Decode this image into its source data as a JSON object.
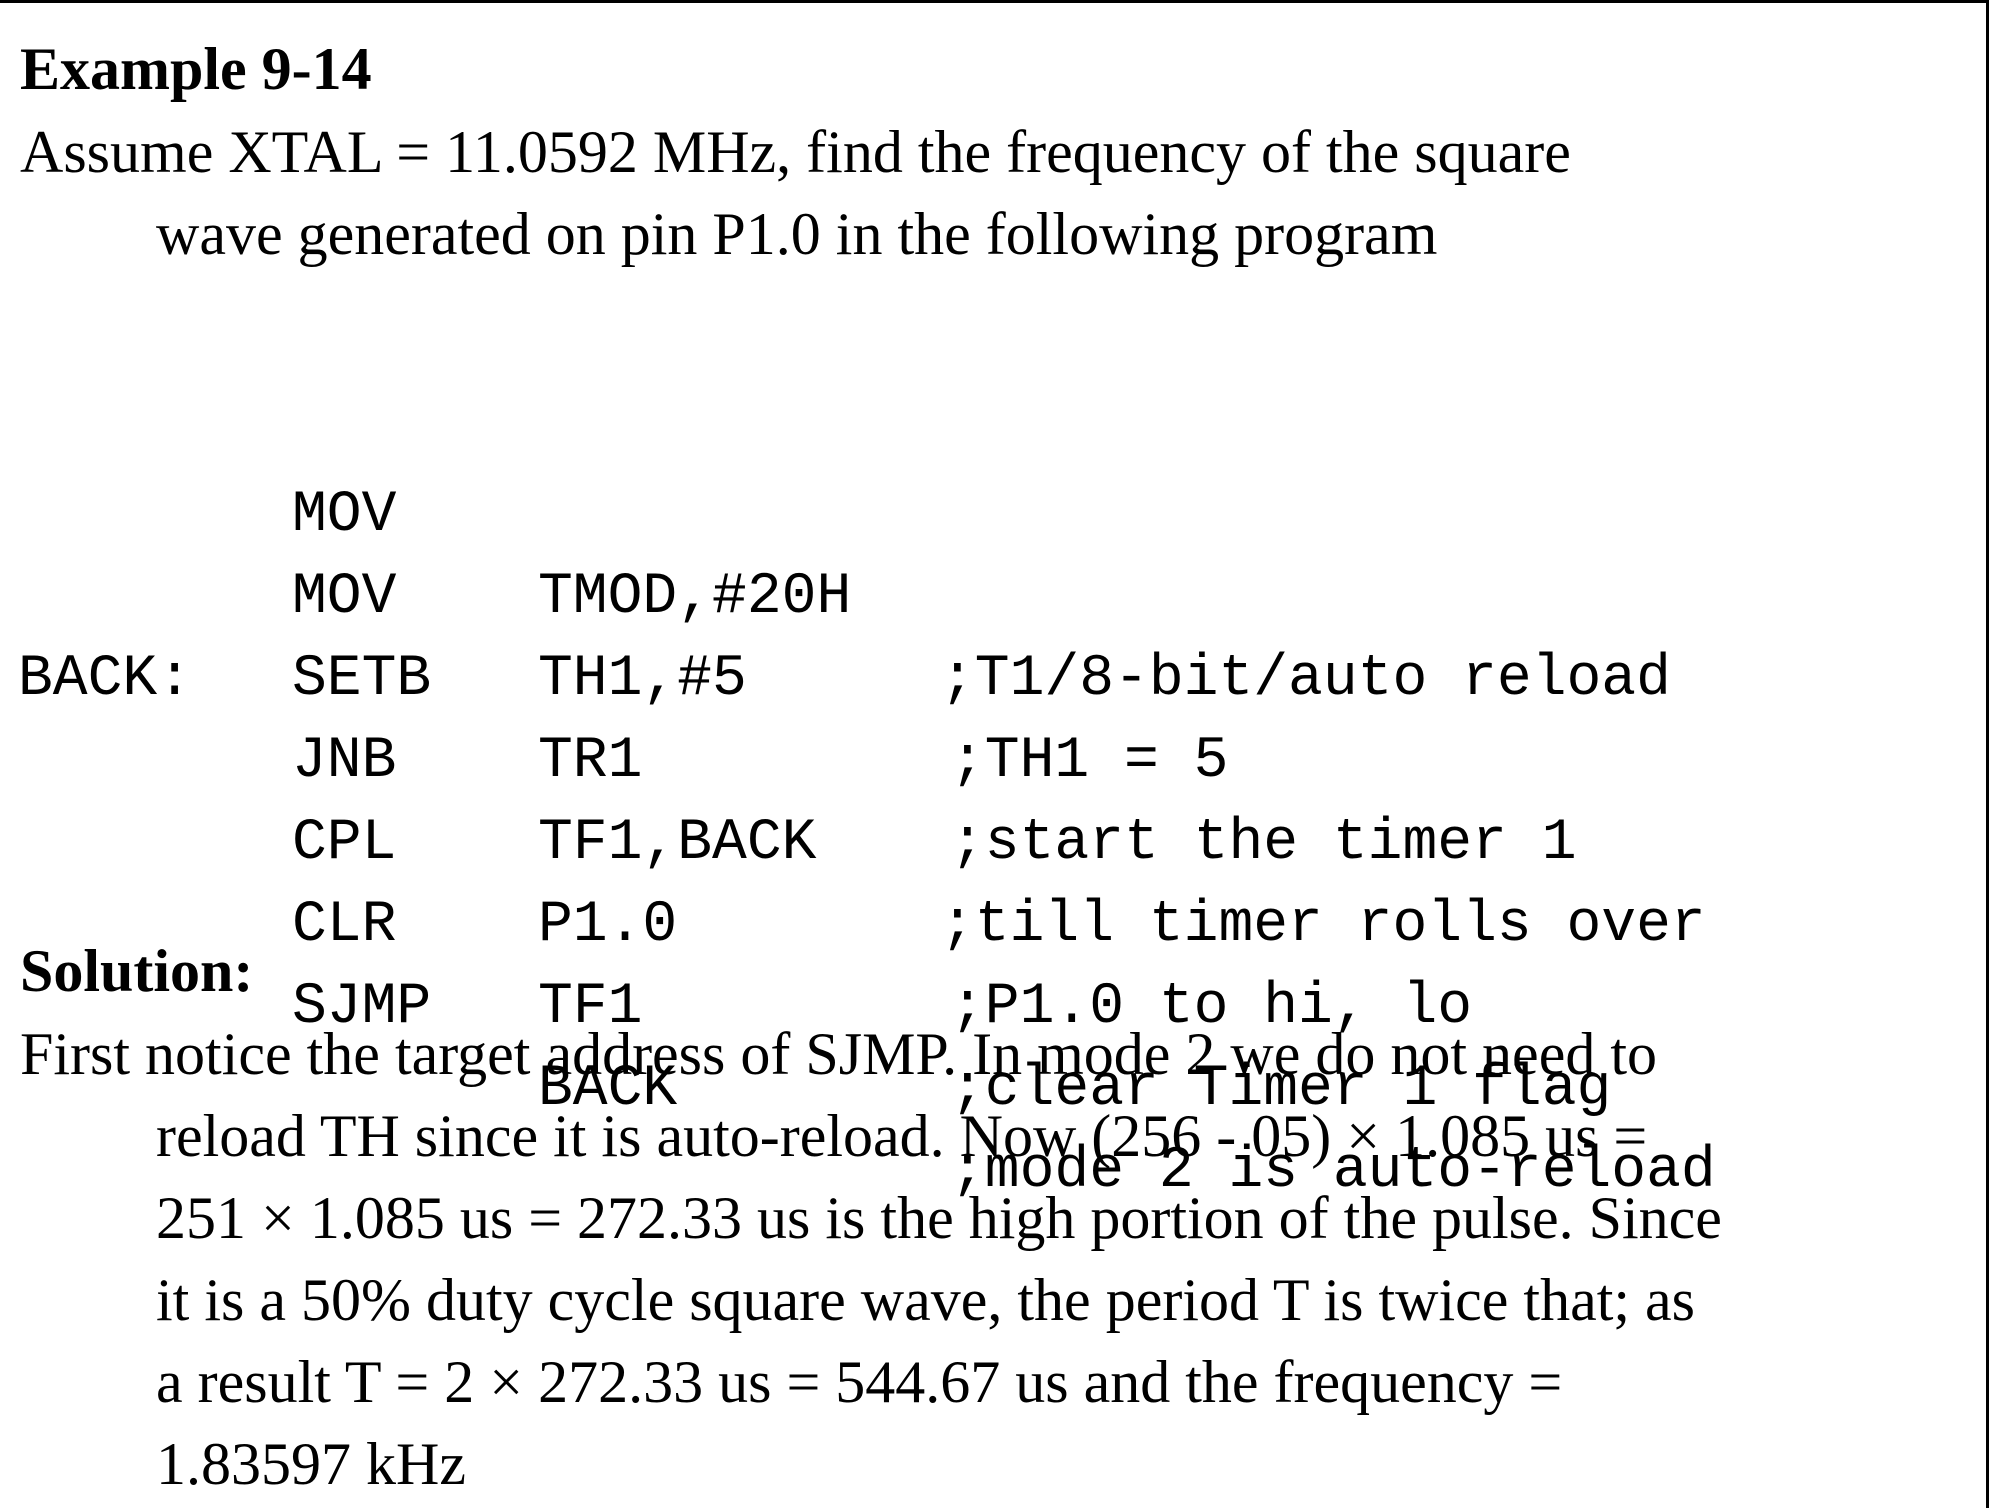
{
  "example_title": "Example 9-14",
  "question": {
    "line1": "Assume XTAL = 11.0592 MHz, find the frequency of the square",
    "line2": "wave generated on pin P1.0 in the following program"
  },
  "code": [
    {
      "label": "",
      "op": "MOV",
      "arg": "TMOD,#20H",
      "comment": ";T1/8-bit/auto reload"
    },
    {
      "label": "",
      "op": "MOV",
      "arg": "TH1,#5",
      "comment": ";TH1 = 5"
    },
    {
      "label": "",
      "op": "SETB",
      "arg": "TR1",
      "comment": ";start the timer 1"
    },
    {
      "label": "BACK:",
      "op": "JNB",
      "arg": "TF1,BACK",
      "comment": ";till timer rolls over"
    },
    {
      "label": "",
      "op": "CPL",
      "arg": "P1.0",
      "comment": ";P1.0 to hi, lo"
    },
    {
      "label": "",
      "op": "CLR",
      "arg": "TF1",
      "comment": ";clear Timer 1 flag"
    },
    {
      "label": "",
      "op": "SJMP",
      "arg": "BACK",
      "comment": ";mode 2 is auto-reload"
    }
  ],
  "solution_heading": "Solution:",
  "solution_lines": [
    "First notice the target address of SJMP. In mode 2 we do not need to",
    "reload TH since it is auto-reload. Now (256 - 05) × 1.085 us =",
    "251 × 1.085 us = 272.33 us is the high portion of the pulse. Since",
    "it is a 50% duty cycle square wave, the period T is twice that; as",
    "a result T = 2 × 272.33 us = 544.67 us and the frequency =",
    "1.83597 kHz"
  ]
}
